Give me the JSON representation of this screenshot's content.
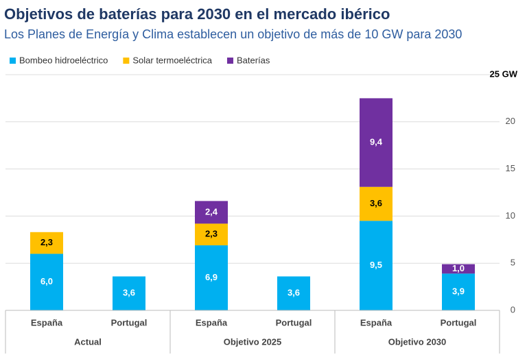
{
  "chart_data": {
    "type": "stacked_bar",
    "title": "Objetivos de baterías para 2030 en el mercado ibérico",
    "subtitle": "Los Planes de Energía y Clima establecen un objetivo de más de 10 GW para 2030",
    "categories": [
      "España",
      "Portugal",
      "España",
      "Portugal",
      "España",
      "Portugal"
    ],
    "groups": [
      "Actual",
      "Objetivo 2025",
      "Objetivo 2030"
    ],
    "series": [
      {
        "name": "Bombeo hidroeléctrico",
        "color": "#00b0f0",
        "values": [
          6.0,
          3.6,
          6.9,
          3.6,
          9.5,
          3.9
        ],
        "value_labels": [
          "6,0",
          "3,6",
          "6,9",
          "3,6",
          "9,5",
          "3,9"
        ]
      },
      {
        "name": "Solar termoeléctrica",
        "color": "#ffc000",
        "values": [
          2.3,
          null,
          2.3,
          null,
          3.6,
          null
        ],
        "value_labels": [
          "2,3",
          null,
          "2,3",
          null,
          "3,6",
          null
        ]
      },
      {
        "name": "Baterías",
        "color": "#7030a0",
        "values": [
          null,
          null,
          2.4,
          null,
          9.4,
          1.0
        ],
        "value_labels": [
          null,
          null,
          "2,4",
          null,
          "9,4",
          "1,0"
        ]
      }
    ],
    "ylim": [
      0,
      25
    ],
    "yticks": [
      0,
      5,
      10,
      15,
      20,
      {
        "value": 25,
        "label": "25 GW"
      }
    ],
    "grid": true,
    "legend": "top-left"
  }
}
